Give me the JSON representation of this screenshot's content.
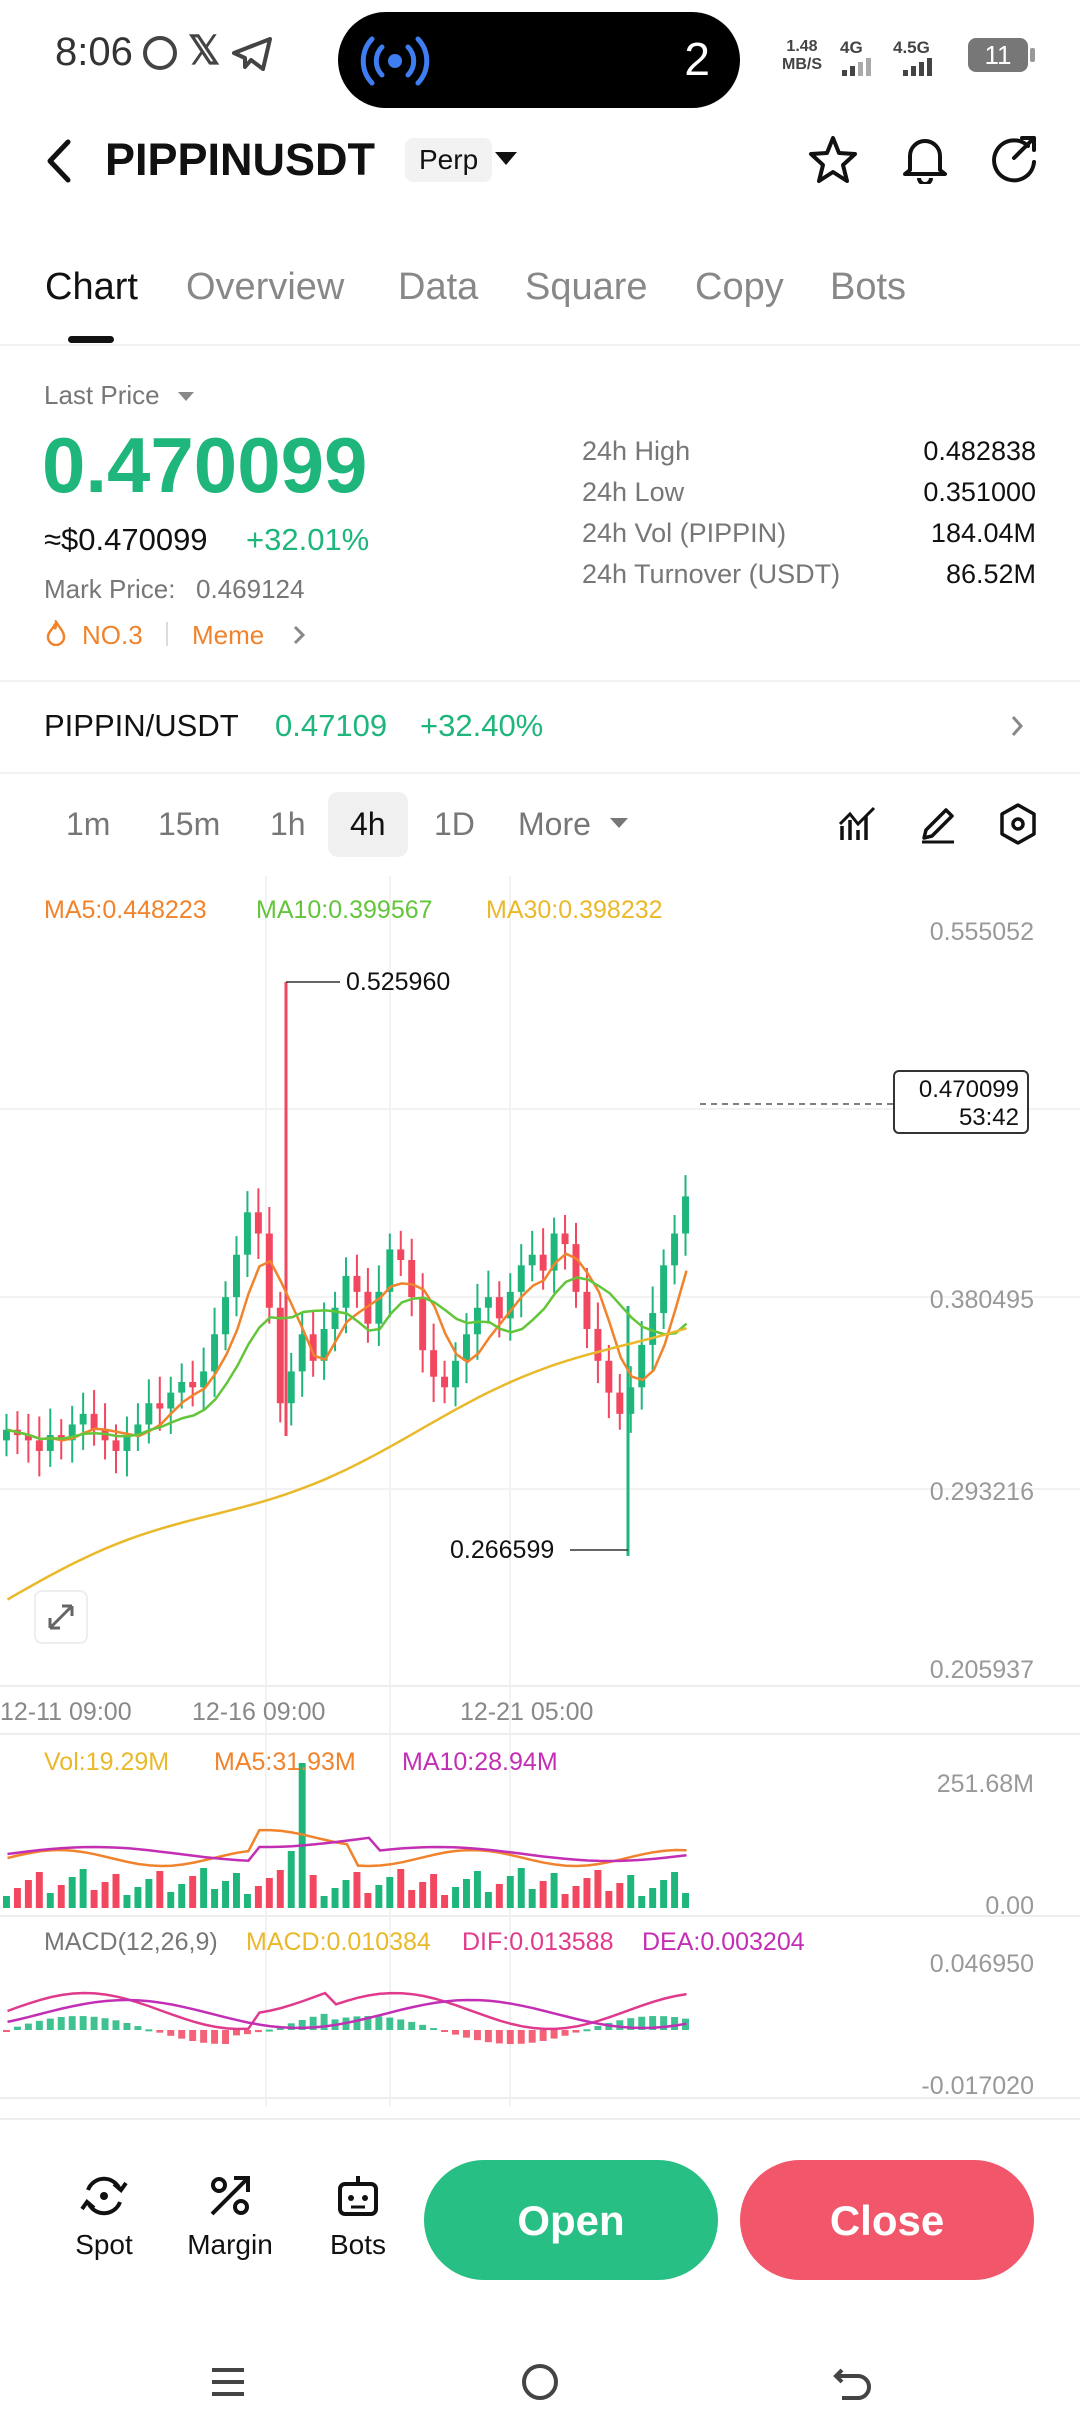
{
  "status_bar": {
    "time": "8:06",
    "island_count": "2",
    "net_speed_value": "1.48",
    "net_speed_unit": "MB/S",
    "net1": "4G",
    "net2": "4.5G",
    "battery": "11"
  },
  "header": {
    "title": "PIPPINUSDT",
    "badge": "Perp"
  },
  "tabs": [
    "Chart",
    "Overview",
    "Data",
    "Square",
    "Copy",
    "Bots"
  ],
  "price": {
    "last_price_label": "Last Price",
    "last_price": "0.470099",
    "usd_value": "≈$0.470099",
    "change": "+32.01%",
    "mark_price_label": "Mark Price:",
    "mark_price": "0.469124",
    "rank": "NO.3",
    "category": "Meme"
  },
  "stats": [
    {
      "label": "24h  High",
      "value": "0.482838"
    },
    {
      "label": "24h  Low",
      "value": "0.351000"
    },
    {
      "label": "24h  Vol (PIPPIN)",
      "value": "184.04M"
    },
    {
      "label": "24h  Turnover (USDT)",
      "value": "86.52M"
    }
  ],
  "spot": {
    "pair": "PIPPIN/USDT",
    "price": "0.47109",
    "change": "+32.40%"
  },
  "intervals": [
    "1m",
    "15m",
    "1h",
    "4h",
    "1D",
    "More"
  ],
  "chart": {
    "ma5": "MA5:0.448223",
    "ma10": "MA10:0.399567",
    "ma30": "MA30:0.398232",
    "y_ticks": [
      "0.555052",
      "0.380495",
      "0.293216",
      "0.205937"
    ],
    "high_marker": "0.525960",
    "low_marker": "0.266599",
    "current_price": "0.470099",
    "countdown": "53:42",
    "x_ticks": [
      "12-11 09:00",
      "12-16 09:00",
      "12-21 05:00"
    ]
  },
  "volume": {
    "vol": "Vol:19.29M",
    "ma5": "MA5:31.93M",
    "ma10": "MA10:28.94M",
    "max": "251.68M",
    "min": "0.00"
  },
  "macd": {
    "title": "MACD(12,26,9)",
    "macd": "MACD:0.010384",
    "dif": "DIF:0.013588",
    "dea": "DEA:0.003204",
    "max": "0.046950",
    "min": "-0.017020"
  },
  "bottom_nav": {
    "spot": "Spot",
    "margin": "Margin",
    "bots": "Bots",
    "open": "Open",
    "close": "Close"
  },
  "colors": {
    "up": "#1fb67c",
    "down": "#f2475f",
    "ma5": "#f0832b",
    "ma10": "#63c53a",
    "ma30": "#e9b92a",
    "dea": "#c32fb4"
  }
}
